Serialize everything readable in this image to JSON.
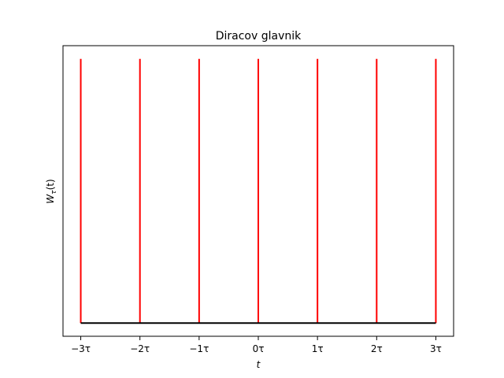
{
  "chart_data": {
    "type": "line",
    "title": "Diracov glavnik",
    "xlabel": "t",
    "ylabel": "W_τ(t)",
    "ylabel_base": "W",
    "ylabel_sub": "τ",
    "ylabel_arg": "(t)",
    "x_ticks": [
      {
        "value": -3,
        "label": "−3τ"
      },
      {
        "value": -2,
        "label": "−2τ"
      },
      {
        "value": -1,
        "label": "−1τ"
      },
      {
        "value": 0,
        "label": "0τ"
      },
      {
        "value": 1,
        "label": "1τ"
      },
      {
        "value": 2,
        "label": "2τ"
      },
      {
        "value": 3,
        "label": "3τ"
      }
    ],
    "xlim": [
      -3.3,
      3.3
    ],
    "ylim": [
      -0.05,
      1.05
    ],
    "y_ticks": [],
    "grid": false,
    "series": [
      {
        "kind": "impulses",
        "color": "#ff0000",
        "x": [
          -3,
          -2,
          -1,
          0,
          1,
          2,
          3
        ],
        "height": 1
      },
      {
        "kind": "baseline",
        "color": "#000000",
        "x": [
          -3,
          3
        ],
        "y": [
          0,
          0
        ]
      }
    ]
  }
}
